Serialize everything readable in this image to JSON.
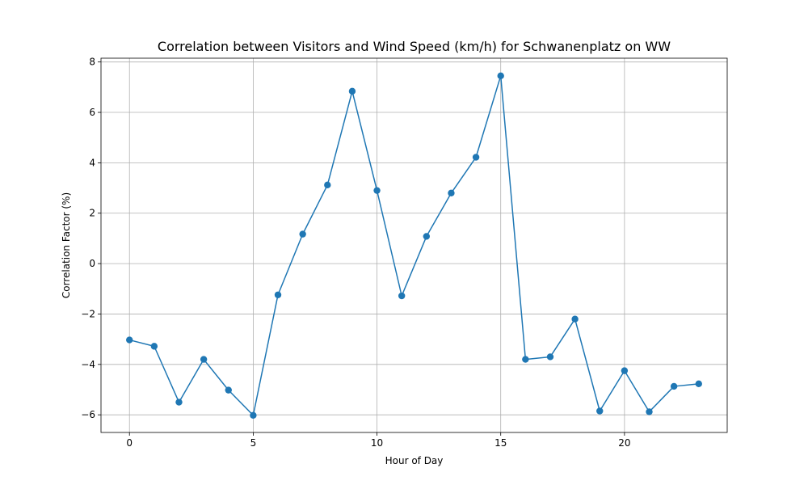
{
  "chart_data": {
    "type": "line",
    "title": "Correlation between Visitors and Wind Speed (km/h) for Schwanenplatz on WW",
    "xlabel": "Hour of Day",
    "ylabel": "Correlation Factor (%)",
    "xlim": [
      -1.15,
      24.15
    ],
    "ylim": [
      -6.7,
      8.15
    ],
    "xticks": [
      0,
      5,
      10,
      15,
      20
    ],
    "yticks": [
      -6,
      -4,
      -2,
      0,
      2,
      4,
      6,
      8
    ],
    "grid": true,
    "series": [
      {
        "color": "#1f77b4",
        "marker": "circle",
        "x": [
          0,
          1,
          2,
          3,
          4,
          5,
          6,
          7,
          8,
          9,
          10,
          11,
          12,
          13,
          14,
          15,
          16,
          17,
          18,
          19,
          20,
          21,
          22,
          23
        ],
        "y": [
          -3.03,
          -3.28,
          -5.5,
          -3.8,
          -5.02,
          -6.02,
          -1.24,
          1.17,
          3.12,
          6.84,
          2.9,
          -1.28,
          1.08,
          2.8,
          4.22,
          7.45,
          -3.8,
          -3.7,
          -2.2,
          -5.85,
          -4.25,
          -5.88,
          -4.87,
          -4.77
        ]
      }
    ]
  }
}
